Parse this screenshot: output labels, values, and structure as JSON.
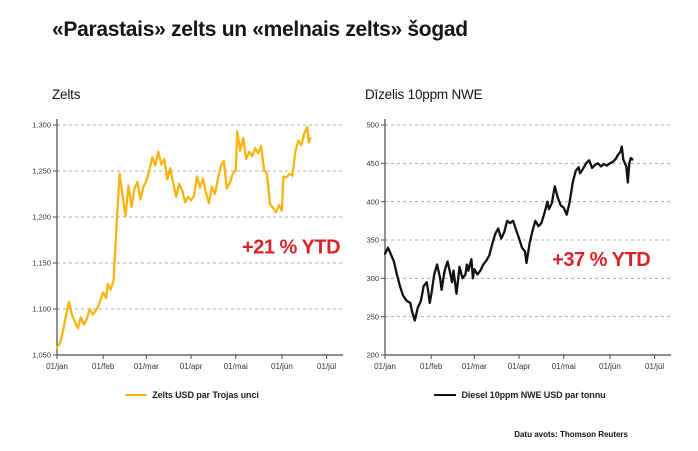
{
  "page": {
    "title": "«Parastais» zelts un «melnais zelts» šogad",
    "source": "Datu avots: Thomson Reuters"
  },
  "colors": {
    "gold": "#F6B511",
    "diesel": "#121212",
    "accent_red": "#D8232A",
    "grid": "#ADADAD",
    "axis": "#4A4A4A",
    "tick_text": "#333333"
  },
  "chart_data": [
    {
      "type": "line",
      "title": "Zelts",
      "legend": "Zelts USD par Trojas unci",
      "annotation": "+21 % YTD",
      "color": "#F6B511",
      "grid": true,
      "legend_position": "bottom-center",
      "ylim": [
        1050,
        1300
      ],
      "xlim": [
        0,
        192
      ],
      "x_tick_days": [
        0,
        31,
        60,
        90,
        120,
        151,
        181
      ],
      "x_tick_labels": [
        "01/jan",
        "01/feb",
        "01/mar",
        "01/apr",
        "01/mai",
        "01/jūn",
        "01/jūl"
      ],
      "y_tick_values": [
        1050,
        1100,
        1150,
        1200,
        1250,
        1300
      ],
      "y_tick_labels": [
        "1,050",
        "1,100",
        "1,150",
        "1,200",
        "1,250",
        "1,300"
      ],
      "annotation_anchor": {
        "x_day": 190,
        "value": 1168
      },
      "series": [
        {
          "name": "Zelts USD par Trojas unci",
          "x_days": [
            0,
            2,
            4,
            6,
            8,
            10,
            12,
            14,
            16,
            18,
            20,
            22,
            24,
            26,
            28,
            30,
            31,
            33,
            34,
            36,
            38,
            40,
            42,
            44,
            46,
            48,
            50,
            52,
            54,
            56,
            58,
            60,
            62,
            64,
            66,
            68,
            70,
            72,
            74,
            76,
            78,
            80,
            82,
            84,
            86,
            88,
            90,
            92,
            94,
            96,
            98,
            100,
            102,
            104,
            106,
            108,
            110,
            112,
            114,
            116,
            118,
            120,
            121,
            123,
            125,
            127,
            129,
            131,
            133,
            135,
            137,
            139,
            141,
            143,
            145,
            147,
            149,
            151,
            152,
            154,
            156,
            158,
            160,
            162,
            164,
            166,
            168,
            169,
            170
          ],
          "values": [
            1058,
            1063,
            1076,
            1092,
            1108,
            1094,
            1086,
            1079,
            1091,
            1083,
            1089,
            1100,
            1094,
            1098,
            1104,
            1114,
            1118,
            1112,
            1127,
            1121,
            1131,
            1192,
            1247,
            1224,
            1201,
            1234,
            1211,
            1231,
            1238,
            1219,
            1233,
            1239,
            1251,
            1265,
            1256,
            1271,
            1257,
            1263,
            1241,
            1253,
            1237,
            1222,
            1236,
            1229,
            1216,
            1222,
            1218,
            1223,
            1244,
            1232,
            1242,
            1226,
            1215,
            1233,
            1225,
            1241,
            1256,
            1261,
            1231,
            1237,
            1247,
            1251,
            1293,
            1272,
            1286,
            1263,
            1271,
            1266,
            1275,
            1269,
            1277,
            1251,
            1247,
            1214,
            1210,
            1205,
            1213,
            1207,
            1244,
            1243,
            1247,
            1245,
            1271,
            1283,
            1278,
            1291,
            1298,
            1281,
            1286
          ]
        }
      ]
    },
    {
      "type": "line",
      "title": "Dīzelis 10ppm NWE",
      "legend": "Diesel 10ppm NWE USD par tonnu",
      "annotation": "+37 % YTD",
      "color": "#121212",
      "grid": true,
      "legend_position": "bottom-center",
      "ylim": [
        200,
        500
      ],
      "xlim": [
        0,
        192
      ],
      "x_tick_days": [
        0,
        31,
        60,
        90,
        120,
        151,
        181
      ],
      "x_tick_labels": [
        "01/jan",
        "01/feb",
        "01/mar",
        "01/apr",
        "01/mai",
        "01/jūn",
        "01/jūl"
      ],
      "y_tick_values": [
        200,
        250,
        300,
        350,
        400,
        450,
        500
      ],
      "y_tick_labels": [
        "200",
        "250",
        "300",
        "350",
        "400",
        "450",
        "500"
      ],
      "annotation_anchor": {
        "x_day": 178,
        "value": 325
      },
      "series": [
        {
          "name": "Diesel 10ppm NWE USD par tonnu",
          "x_days": [
            0,
            2,
            4,
            6,
            8,
            10,
            12,
            14,
            15,
            17,
            18,
            20,
            22,
            24,
            26,
            28,
            29,
            30,
            31,
            33,
            35,
            37,
            38,
            40,
            42,
            44,
            45,
            46,
            48,
            50,
            52,
            54,
            55,
            56,
            58,
            59,
            60,
            62,
            64,
            66,
            68,
            70,
            72,
            74,
            76,
            78,
            80,
            82,
            84,
            86,
            88,
            90,
            92,
            94,
            95,
            97,
            99,
            101,
            103,
            105,
            107,
            109,
            110,
            112,
            114,
            116,
            118,
            120,
            122,
            124,
            126,
            128,
            130,
            131,
            133,
            135,
            137,
            139,
            141,
            143,
            145,
            147,
            149,
            151,
            153,
            155,
            156,
            158,
            159,
            160,
            161,
            162,
            163,
            164,
            165,
            166
          ],
          "values": [
            332,
            340,
            331,
            322,
            305,
            290,
            278,
            272,
            270,
            268,
            258,
            245,
            262,
            270,
            290,
            295,
            283,
            268,
            278,
            305,
            318,
            300,
            285,
            310,
            322,
            305,
            295,
            310,
            280,
            315,
            300,
            305,
            318,
            310,
            325,
            300,
            312,
            305,
            310,
            318,
            323,
            330,
            345,
            358,
            365,
            352,
            360,
            375,
            372,
            375,
            363,
            352,
            340,
            335,
            320,
            345,
            362,
            375,
            368,
            372,
            385,
            400,
            390,
            398,
            420,
            405,
            395,
            392,
            383,
            400,
            425,
            440,
            445,
            437,
            443,
            450,
            454,
            444,
            448,
            450,
            446,
            449,
            447,
            450,
            452,
            456,
            460,
            465,
            472,
            455,
            450,
            446,
            425,
            450,
            457,
            455
          ]
        }
      ]
    }
  ]
}
